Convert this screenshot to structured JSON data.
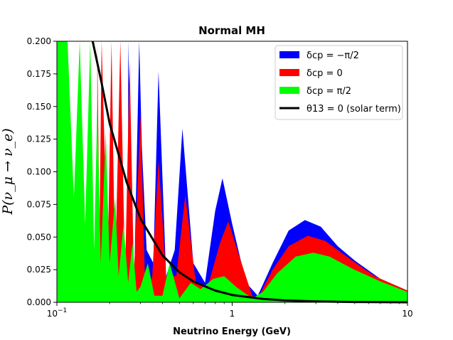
{
  "chart_data": {
    "type": "area",
    "title": "Normal MH",
    "xlabel": "Neutrino Energy (GeV)",
    "ylabel": "P(ν_μ → ν_e)",
    "x_scale": "log",
    "xlim": [
      0.1,
      10
    ],
    "ylim": [
      0,
      0.2
    ],
    "x_tick_labels": [
      {
        "value": 0.1,
        "label": "10",
        "exponent": "−1"
      },
      {
        "value": 1,
        "label": "1"
      },
      {
        "value": 10,
        "label": "10"
      }
    ],
    "y_ticks": [
      0.0,
      0.025,
      0.05,
      0.075,
      0.1,
      0.125,
      0.15,
      0.175,
      0.2
    ],
    "y_tick_labels": [
      "0.000",
      "0.025",
      "0.050",
      "0.075",
      "0.100",
      "0.125",
      "0.150",
      "0.175",
      "0.200"
    ],
    "legend_position": "top-right",
    "series": [
      {
        "name": "δcp = −π/2",
        "legend_label": "δ_cp = −π/2",
        "color": "#0000ff",
        "style": "fill",
        "points": [
          [
            0.255,
            0.2
          ],
          [
            0.275,
            0.005
          ],
          [
            0.295,
            0.2
          ],
          [
            0.305,
            0.12
          ],
          [
            0.325,
            0.04
          ],
          [
            0.355,
            0.03
          ],
          [
            0.38,
            0.177
          ],
          [
            0.42,
            0.02
          ],
          [
            0.47,
            0.04
          ],
          [
            0.52,
            0.133
          ],
          [
            0.6,
            0.03
          ],
          [
            0.7,
            0.015
          ],
          [
            0.8,
            0.07
          ],
          [
            0.88,
            0.095
          ],
          [
            1.0,
            0.06
          ],
          [
            1.2,
            0.015
          ],
          [
            1.4,
            0.005
          ],
          [
            1.7,
            0.03
          ],
          [
            2.1,
            0.055
          ],
          [
            2.6,
            0.063
          ],
          [
            3.2,
            0.058
          ],
          [
            4.0,
            0.043
          ],
          [
            5.0,
            0.032
          ],
          [
            7.0,
            0.018
          ],
          [
            10.0,
            0.009
          ]
        ]
      },
      {
        "name": "δcp = 0",
        "legend_label": "δ_cp = 0",
        "color": "#ff0000",
        "style": "fill",
        "points": [
          [
            0.17,
            0.2
          ],
          [
            0.175,
            0.05
          ],
          [
            0.18,
            0.2
          ],
          [
            0.195,
            0.03
          ],
          [
            0.205,
            0.2
          ],
          [
            0.215,
            0.02
          ],
          [
            0.23,
            0.2
          ],
          [
            0.245,
            0.02
          ],
          [
            0.26,
            0.185
          ],
          [
            0.275,
            0.02
          ],
          [
            0.3,
            0.144
          ],
          [
            0.32,
            0.003
          ],
          [
            0.35,
            0.02
          ],
          [
            0.38,
            0.109
          ],
          [
            0.42,
            0.02
          ],
          [
            0.48,
            0.02
          ],
          [
            0.54,
            0.082
          ],
          [
            0.62,
            0.015
          ],
          [
            0.72,
            0.01
          ],
          [
            0.85,
            0.045
          ],
          [
            0.95,
            0.062
          ],
          [
            1.1,
            0.035
          ],
          [
            1.3,
            0.005
          ],
          [
            1.4,
            0.003
          ],
          [
            1.7,
            0.025
          ],
          [
            2.1,
            0.043
          ],
          [
            2.7,
            0.051
          ],
          [
            3.4,
            0.047
          ],
          [
            4.5,
            0.035
          ],
          [
            6.5,
            0.02
          ],
          [
            10.0,
            0.009
          ]
        ]
      },
      {
        "name": "δcp = π/2",
        "legend_label": "δ_cp = π/2",
        "color": "#00ff00",
        "style": "fill",
        "points": [
          [
            0.1,
            0.2
          ],
          [
            0.115,
            0.2
          ],
          [
            0.125,
            0.08
          ],
          [
            0.135,
            0.2
          ],
          [
            0.145,
            0.06
          ],
          [
            0.155,
            0.2
          ],
          [
            0.163,
            0.04
          ],
          [
            0.17,
            0.15
          ],
          [
            0.178,
            0.03
          ],
          [
            0.19,
            0.13
          ],
          [
            0.2,
            0.03
          ],
          [
            0.215,
            0.08
          ],
          [
            0.225,
            0.02
          ],
          [
            0.24,
            0.06
          ],
          [
            0.255,
            0.015
          ],
          [
            0.27,
            0.045
          ],
          [
            0.285,
            0.008
          ],
          [
            0.3,
            0.012
          ],
          [
            0.33,
            0.03
          ],
          [
            0.36,
            0.005
          ],
          [
            0.4,
            0.005
          ],
          [
            0.44,
            0.03
          ],
          [
            0.5,
            0.003
          ],
          [
            0.58,
            0.015
          ],
          [
            0.66,
            0.01
          ],
          [
            0.78,
            0.018
          ],
          [
            0.9,
            0.02
          ],
          [
            1.05,
            0.012
          ],
          [
            1.3,
            0.003
          ],
          [
            1.5,
            0.008
          ],
          [
            1.8,
            0.022
          ],
          [
            2.3,
            0.035
          ],
          [
            2.9,
            0.038
          ],
          [
            3.6,
            0.035
          ],
          [
            4.8,
            0.026
          ],
          [
            7.0,
            0.016
          ],
          [
            10.0,
            0.008
          ]
        ]
      },
      {
        "name": "θ13 = 0 (solar term)",
        "legend_label": "θ_13 = 0 (solar term)",
        "color": "#000000",
        "style": "line",
        "points": [
          [
            0.16,
            0.2
          ],
          [
            0.18,
            0.168
          ],
          [
            0.2,
            0.137
          ],
          [
            0.25,
            0.092
          ],
          [
            0.3,
            0.064
          ],
          [
            0.4,
            0.036
          ],
          [
            0.5,
            0.023
          ],
          [
            0.6,
            0.016
          ],
          [
            0.8,
            0.009
          ],
          [
            1.0,
            0.0056
          ],
          [
            1.5,
            0.0026
          ],
          [
            2.0,
            0.0014
          ],
          [
            3.0,
            0.0007
          ],
          [
            5.0,
            0.0002
          ],
          [
            10.0,
            0.0
          ]
        ]
      }
    ]
  }
}
